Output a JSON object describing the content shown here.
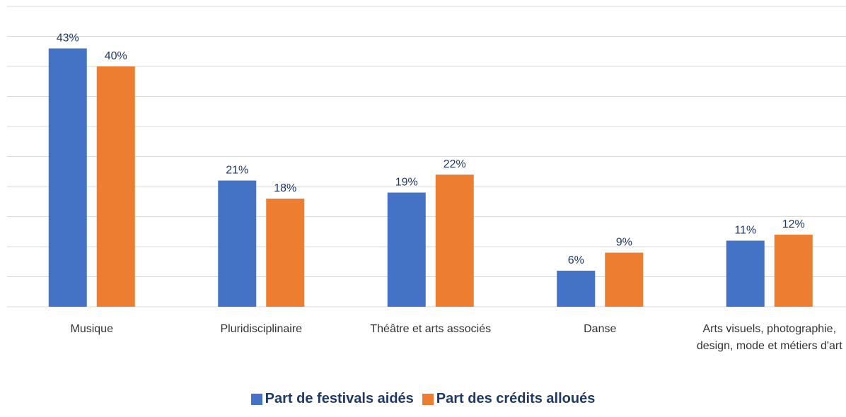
{
  "chart_data": {
    "type": "bar",
    "categories": [
      "Musique",
      "Pluridisciplinaire",
      "Théâtre et arts associés",
      "Danse",
      "Arts visuels, photographie, design, mode et métiers d'art"
    ],
    "series": [
      {
        "name": "Part de festivals aidés",
        "color": "#4472c4",
        "values": [
          43,
          21,
          19,
          6,
          11
        ],
        "value_labels": [
          "43%",
          "21%",
          "19%",
          "6%",
          "11%"
        ]
      },
      {
        "name": "Part des crédits alloués",
        "color": "#ed7d31",
        "values": [
          40,
          18,
          22,
          9,
          12
        ],
        "value_labels": [
          "40%",
          "18%",
          "22%",
          "9%",
          "12%"
        ]
      }
    ],
    "ylim": [
      0,
      50
    ],
    "yticks": [
      0,
      5,
      10,
      15,
      20,
      25,
      30,
      35,
      40,
      45,
      50
    ],
    "grid": true,
    "legend": "bottom"
  }
}
